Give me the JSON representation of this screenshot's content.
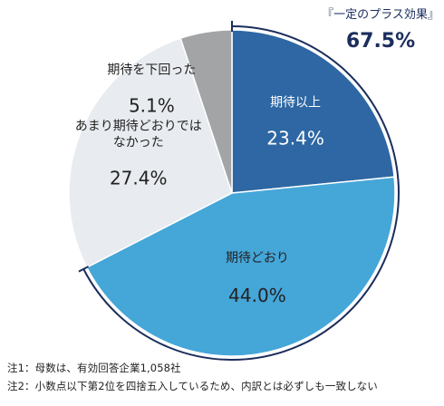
{
  "chart_data": {
    "type": "pie",
    "slices": [
      {
        "label": "期待以上",
        "value": 23.4,
        "value_label": "23.4%",
        "color": "#2e67a3"
      },
      {
        "label": "期待どおり",
        "value": 44.0,
        "value_label": "44.0%",
        "color": "#45a6d8"
      },
      {
        "label": "あまり期待どおりではなかった",
        "label_lines": [
          "あまり期待どおりでは",
          "なかった"
        ],
        "value": 27.4,
        "value_label": "27.4%",
        "color": "#e8ebef"
      },
      {
        "label": "期待を下回った",
        "value": 5.1,
        "value_label": "5.1%",
        "color": "#a2a4a6"
      }
    ],
    "group_annotation": {
      "label": "『一定のプラス効果』",
      "value_label": "67.5%",
      "color": "#1b2d5c"
    }
  },
  "notes": [
    "注1：母数は、有効回答企業1,058社",
    "注2：小数点以下第2位を四捨五入しているため、内訳とは必ずしも一致しない"
  ]
}
